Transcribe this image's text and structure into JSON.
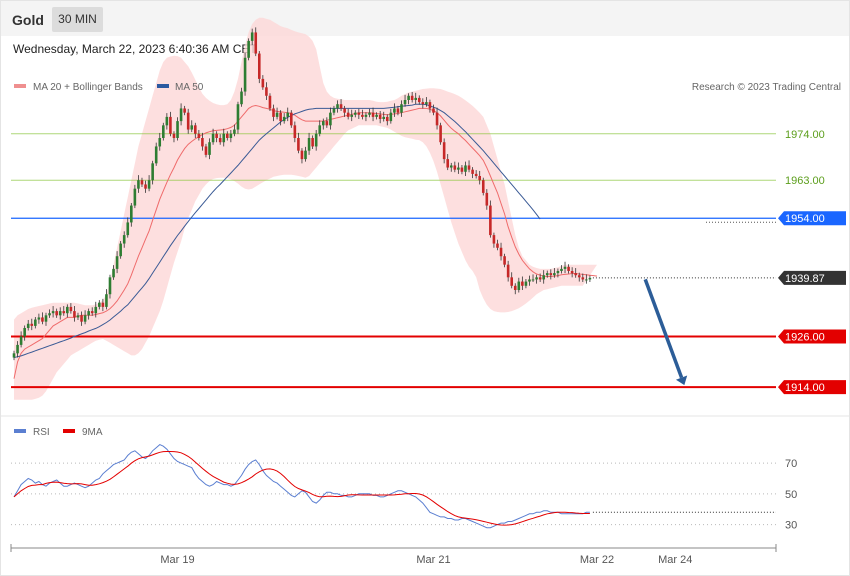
{
  "header": {
    "instrument": "Gold",
    "timeframe": "30 MIN"
  },
  "timestamp": "Wednesday, March 22, 2023 6:40:36 AM CET",
  "colors": {
    "up_candle": "#2e7d32",
    "down_candle": "#c62828",
    "ma20": "#ef6b6b",
    "bollinger_fill": "#fdd7d7",
    "ma50": "#3a5a95",
    "rsi": "#5b7fd1",
    "rsi_ma": "#e30000",
    "resistance": "#8cc63f",
    "pivot": "#1a66ff",
    "support": "#e30000",
    "arrow": "#2c5d98",
    "last_price": "#333333"
  },
  "chart_data": [
    {
      "type": "candlestick",
      "legend": [
        {
          "name": "MA 20 + Bollinger Bands",
          "color": "#ef8f8f"
        },
        {
          "name": "MA 50",
          "color": "#2c5aa0"
        }
      ],
      "copyright": "Research © 2023 Trading Central",
      "x_ticks": [
        {
          "index": 46,
          "label": "Mar 19"
        },
        {
          "index": 118,
          "label": "Mar 21"
        },
        {
          "index": 164,
          "label": "Mar 22"
        },
        {
          "index": 186,
          "label": "Mar 24"
        }
      ],
      "x_span": 194,
      "ylim": [
        1910,
        1982
      ],
      "levels": [
        {
          "value": 1974.0,
          "label": "1974.00",
          "kind": "resistance"
        },
        {
          "value": 1963.0,
          "label": "1963.00",
          "kind": "resistance"
        },
        {
          "value": 1954.0,
          "label": "1954.00",
          "kind": "pivot"
        },
        {
          "value": 1926.0,
          "label": "1926.00",
          "kind": "support"
        },
        {
          "value": 1914.0,
          "label": "1914.00",
          "kind": "support"
        }
      ],
      "last_price": {
        "value": 1939.87,
        "label": "1939.87"
      },
      "forecast_arrow": {
        "from": [
          177,
          1940
        ],
        "to": [
          188,
          1914
        ]
      },
      "close": [
        1922.0,
        1924.0,
        1926.0,
        1928.0,
        1929.0,
        1928.5,
        1930.0,
        1930.5,
        1929.5,
        1931.0,
        1931.5,
        1932.0,
        1931.0,
        1932.0,
        1931.5,
        1933.0,
        1932.0,
        1930.5,
        1931.0,
        1929.5,
        1931.0,
        1932.0,
        1931.5,
        1933.0,
        1934.0,
        1933.0,
        1936.0,
        1940.0,
        1942.0,
        1945.0,
        1948.0,
        1950.0,
        1953.0,
        1957.0,
        1961.0,
        1963.0,
        1962.0,
        1961.0,
        1963.0,
        1967.0,
        1971.0,
        1973.0,
        1976.0,
        1978.0,
        1974.0,
        1973.0,
        1977.0,
        1980.0,
        1979.0,
        1975.0,
        1976.0,
        1974.0,
        1973.0,
        1971.0,
        1969.0,
        1972.0,
        1974.0,
        1973.0,
        1972.0,
        1974.0,
        1973.0,
        1974.0,
        1975.0,
        1981.0,
        1984.0,
        1992.0,
        1996.0,
        1998.0,
        1993.0,
        1987.0,
        1985.0,
        1983.0,
        1980.0,
        1978.0,
        1979.0,
        1977.0,
        1978.0,
        1979.0,
        1976.0,
        1973.0,
        1970.0,
        1968.0,
        1970.0,
        1973.0,
        1971.0,
        1974.0,
        1976.0,
        1977.0,
        1976.0,
        1979.0,
        1980.0,
        1981.0,
        1980.0,
        1979.0,
        1978.0,
        1978.5,
        1979.0,
        1978.5,
        1978.0,
        1978.5,
        1979.0,
        1978.0,
        1978.5,
        1977.5,
        1978.0,
        1977.0,
        1979.0,
        1980.0,
        1979.0,
        1981.0,
        1982.0,
        1983.0,
        1982.0,
        1982.5,
        1981.5,
        1981.0,
        1981.5,
        1980.0,
        1979.0,
        1976.0,
        1972.0,
        1968.0,
        1966.0,
        1966.5,
        1965.5,
        1966.0,
        1965.0,
        1966.5,
        1965.5,
        1964.5,
        1964.0,
        1963.0,
        1960.0,
        1957.0,
        1950.0,
        1948.0,
        1947.0,
        1945.0,
        1943.0,
        1940.0,
        1938.0,
        1937.0,
        1939.0,
        1938.0,
        1939.0,
        1939.5,
        1939.5,
        1940.0,
        1939.5,
        1940.5,
        1941.0,
        1940.5,
        1941.0,
        1941.5,
        1942.0,
        1942.5,
        1941.5,
        1941.0,
        1940.5,
        1940.0,
        1939.5,
        1939.5,
        1939.87
      ],
      "ma20": [
        1916.0,
        1920.0,
        1922.0,
        1923.0,
        1923.5,
        1924.0,
        1924.5,
        1925.0,
        1925.5,
        1926.5,
        1927.5,
        1928.5,
        1929.0,
        1929.5,
        1930.0,
        1930.5,
        1930.5,
        1930.5,
        1930.8,
        1931.0,
        1931.0,
        1931.0,
        1931.0,
        1931.2,
        1931.4,
        1931.6,
        1932.0,
        1932.6,
        1933.4,
        1934.4,
        1935.7,
        1937.0,
        1938.5,
        1940.5,
        1942.8,
        1945.0,
        1947.0,
        1949.0,
        1951.0,
        1953.5,
        1956.0,
        1958.5,
        1960.5,
        1962.5,
        1964.3,
        1966.0,
        1967.8,
        1969.2,
        1970.5,
        1971.5,
        1972.2,
        1972.8,
        1973.3,
        1973.8,
        1974.2,
        1974.5,
        1974.7,
        1974.8,
        1974.9,
        1975.0,
        1975.2,
        1975.5,
        1976.0,
        1977.0,
        1978.0,
        1979.0,
        1980.0,
        1980.5,
        1980.7,
        1980.5,
        1980.2,
        1980.0,
        1979.8,
        1979.5,
        1979.3,
        1979.2,
        1979.1,
        1979.0,
        1978.8,
        1978.4,
        1977.8,
        1977.3,
        1977.0,
        1977.0,
        1977.0,
        1977.0,
        1977.0,
        1977.0,
        1977.2,
        1977.4,
        1977.6,
        1977.8,
        1978.0,
        1978.2,
        1978.4,
        1978.6,
        1978.8,
        1979.0,
        1979.0,
        1979.0,
        1979.0,
        1978.9,
        1978.8,
        1978.7,
        1978.6,
        1978.5,
        1978.6,
        1978.7,
        1978.8,
        1979.0,
        1979.2,
        1979.4,
        1979.6,
        1979.8,
        1980.0,
        1980.0,
        1980.0,
        1979.8,
        1979.5,
        1979.0,
        1978.2,
        1977.2,
        1976.2,
        1975.3,
        1974.6,
        1974.0,
        1973.2,
        1972.4,
        1971.5,
        1970.6,
        1969.7,
        1968.8,
        1967.7,
        1966.0,
        1964.0,
        1962.0,
        1960.0,
        1957.5,
        1955.0,
        1952.0,
        1949.5,
        1947.2,
        1945.5,
        1944.0,
        1943.0,
        1942.0,
        1941.3,
        1940.8,
        1940.5,
        1940.3,
        1940.2,
        1940.2,
        1940.3,
        1940.4,
        1940.6,
        1940.7,
        1940.8,
        1940.9,
        1940.9,
        1940.8,
        1940.7,
        1940.6,
        1940.5,
        1940.4,
        1940.3
      ],
      "bb_upper": [
        1930.0,
        1931.0,
        1931.5,
        1932.0,
        1932.5,
        1932.8,
        1933.0,
        1933.2,
        1933.4,
        1933.6,
        1933.8,
        1934.0,
        1934.0,
        1934.0,
        1934.0,
        1934.0,
        1934.0,
        1934.0,
        1933.8,
        1933.6,
        1933.4,
        1933.4,
        1933.4,
        1933.6,
        1934.0,
        1934.6,
        1936.0,
        1939.0,
        1943.0,
        1947.0,
        1951.0,
        1955.0,
        1959.0,
        1963.0,
        1967.0,
        1971.0,
        1974.0,
        1977.0,
        1980.0,
        1983.0,
        1986.0,
        1989.0,
        1991.0,
        1992.0,
        1992.3,
        1992.5,
        1992.4,
        1992.0,
        1991.0,
        1990.0,
        1988.5,
        1986.8,
        1985.0,
        1983.5,
        1982.5,
        1981.8,
        1981.3,
        1981.0,
        1980.8,
        1980.8,
        1981.0,
        1982.0,
        1984.0,
        1987.0,
        1991.0,
        1995.0,
        1998.0,
        2000.0,
        2001.0,
        2001.5,
        2001.5,
        2001.2,
        2001.0,
        2000.5,
        2000.0,
        1999.5,
        1999.2,
        1999.0,
        1998.6,
        1998.3,
        1998.0,
        1997.8,
        1997.6,
        1997.0,
        1996.0,
        1994.0,
        1990.0,
        1986.0,
        1984.0,
        1983.0,
        1982.5,
        1982.3,
        1982.2,
        1982.0,
        1982.0,
        1982.0,
        1982.0,
        1982.0,
        1982.0,
        1982.0,
        1982.0,
        1981.8,
        1981.6,
        1981.5,
        1981.5,
        1981.6,
        1981.8,
        1982.0,
        1982.4,
        1983.0,
        1983.4,
        1983.8,
        1984.0,
        1984.2,
        1984.4,
        1984.6,
        1984.7,
        1984.8,
        1984.8,
        1984.7,
        1984.6,
        1984.3,
        1984.0,
        1983.7,
        1983.4,
        1983.0,
        1982.5,
        1981.9,
        1981.3,
        1980.6,
        1979.8,
        1979.0,
        1978.0,
        1976.0,
        1974.0,
        1971.0,
        1968.0,
        1965.0,
        1962.0,
        1958.0,
        1954.0,
        1950.0,
        1947.0,
        1945.0,
        1944.0,
        1943.0,
        1942.5,
        1942.2,
        1942.0,
        1942.0,
        1942.0,
        1942.0,
        1942.2,
        1942.4,
        1942.7,
        1943.0,
        1943.0,
        1943.0,
        1943.0,
        1943.0,
        1943.0,
        1943.0,
        1943.0,
        1943.0,
        1943.0
      ],
      "bb_lower": [
        1911.0,
        1911.0,
        1911.0,
        1911.0,
        1911.0,
        1911.0,
        1911.2,
        1911.5,
        1912.0,
        1913.0,
        1914.5,
        1916.0,
        1917.5,
        1918.5,
        1919.5,
        1920.5,
        1921.5,
        1922.0,
        1922.5,
        1923.0,
        1923.5,
        1924.0,
        1924.5,
        1925.0,
        1925.2,
        1925.4,
        1925.0,
        1924.5,
        1924.0,
        1923.5,
        1923.0,
        1922.5,
        1922.0,
        1921.5,
        1921.5,
        1922.0,
        1923.0,
        1924.5,
        1926.0,
        1928.0,
        1930.0,
        1932.0,
        1934.5,
        1937.5,
        1940.5,
        1943.5,
        1946.0,
        1948.5,
        1951.5,
        1954.0,
        1956.0,
        1958.0,
        1959.5,
        1961.0,
        1962.0,
        1962.8,
        1963.3,
        1963.5,
        1963.6,
        1963.6,
        1963.5,
        1963.2,
        1962.8,
        1962.2,
        1961.5,
        1961.0,
        1960.8,
        1961.0,
        1961.5,
        1962.0,
        1962.5,
        1963.0,
        1963.4,
        1963.8,
        1964.0,
        1964.2,
        1964.3,
        1964.3,
        1964.3,
        1964.2,
        1964.0,
        1963.8,
        1963.6,
        1964.0,
        1965.0,
        1966.0,
        1967.0,
        1968.0,
        1969.0,
        1970.0,
        1971.0,
        1972.0,
        1973.0,
        1974.0,
        1974.8,
        1975.2,
        1975.6,
        1976.0,
        1976.0,
        1976.0,
        1976.0,
        1976.0,
        1976.0,
        1975.8,
        1975.6,
        1975.4,
        1975.0,
        1974.5,
        1974.0,
        1973.5,
        1973.2,
        1973.0,
        1972.8,
        1972.6,
        1972.5,
        1972.0,
        1971.0,
        1969.5,
        1967.5,
        1965.0,
        1962.0,
        1959.0,
        1956.0,
        1953.0,
        1950.5,
        1948.0,
        1946.0,
        1944.0,
        1942.5,
        1941.5,
        1940.0,
        1937.0,
        1935.0,
        1933.5,
        1932.5,
        1932.0,
        1931.8,
        1931.7,
        1931.7,
        1931.8,
        1932.0,
        1932.3,
        1932.7,
        1933.2,
        1933.8,
        1934.5,
        1935.2,
        1936.0,
        1936.5,
        1937.0,
        1937.2,
        1937.4,
        1937.6,
        1937.8,
        1938.0,
        1938.0,
        1938.0,
        1938.0,
        1938.0,
        1938.0,
        1938.0
      ],
      "ma50": [
        1921.0,
        1921.2,
        1921.4,
        1921.7,
        1922.0,
        1922.3,
        1922.6,
        1922.9,
        1923.2,
        1923.5,
        1923.8,
        1924.1,
        1924.4,
        1924.7,
        1925.0,
        1925.3,
        1925.6,
        1926.0,
        1926.3,
        1926.6,
        1926.9,
        1927.3,
        1927.6,
        1927.9,
        1928.3,
        1928.8,
        1929.3,
        1929.9,
        1930.6,
        1931.3,
        1932.0,
        1932.8,
        1933.5,
        1934.5,
        1935.5,
        1936.5,
        1937.5,
        1938.5,
        1939.7,
        1941.0,
        1942.3,
        1943.6,
        1944.9,
        1946.2,
        1947.5,
        1948.7,
        1949.9,
        1951.0,
        1952.1,
        1953.2,
        1954.3,
        1955.3,
        1956.3,
        1957.3,
        1958.3,
        1959.3,
        1960.3,
        1961.2,
        1962.0,
        1962.9,
        1963.8,
        1964.7,
        1965.6,
        1966.5,
        1967.5,
        1968.5,
        1969.5,
        1970.5,
        1971.5,
        1972.5,
        1973.3,
        1974.0,
        1974.7,
        1975.4,
        1976.1,
        1976.8,
        1977.4,
        1977.9,
        1978.3,
        1978.7,
        1979.0,
        1979.3,
        1979.6,
        1979.8,
        1979.9,
        1980.0,
        1980.0,
        1980.0,
        1980.0,
        1980.0,
        1980.0,
        1980.0,
        1980.0,
        1980.0,
        1980.0,
        1980.0,
        1980.0,
        1980.0,
        1980.0,
        1980.0,
        1980.0,
        1980.0,
        1980.0,
        1980.0,
        1980.0,
        1980.1,
        1980.2,
        1980.3,
        1980.4,
        1980.5,
        1980.6,
        1980.7,
        1980.8,
        1981.0,
        1981.0,
        1981.0,
        1980.9,
        1980.6,
        1980.3,
        1980.0,
        1979.5,
        1979.0,
        1978.3,
        1977.6,
        1976.9,
        1976.1,
        1975.3,
        1974.5,
        1973.6,
        1972.7,
        1971.8,
        1970.9,
        1970.0,
        1969.0,
        1968.0,
        1967.0,
        1966.0,
        1965.0,
        1964.0,
        1963.0,
        1962.0,
        1961.0,
        1960.0,
        1959.0,
        1958.0,
        1957.0,
        1956.0,
        1954.9,
        1953.8
      ],
      "rsi": [
        48,
        52,
        56,
        58,
        60,
        59,
        57,
        58,
        56,
        55,
        57,
        58,
        59,
        57,
        55,
        55,
        56,
        57,
        56,
        55,
        54,
        55,
        57,
        59,
        60,
        63,
        65,
        67,
        69,
        70,
        71,
        72,
        75,
        77,
        78,
        76,
        74,
        73,
        75,
        78,
        80,
        82,
        81,
        79,
        76,
        73,
        71,
        70,
        69,
        68,
        67,
        63,
        60,
        58,
        56,
        55,
        56,
        58,
        57,
        56,
        56,
        55,
        56,
        59,
        62,
        66,
        69,
        71,
        72,
        69,
        65,
        62,
        60,
        58,
        57,
        55,
        53,
        51,
        49,
        48,
        50,
        52,
        51,
        48,
        45,
        44,
        46,
        49,
        51,
        51,
        50,
        50,
        49,
        49,
        48,
        48,
        49,
        50,
        50,
        50,
        50,
        49,
        49,
        48,
        48,
        49,
        50,
        51,
        52,
        52,
        51,
        50,
        49,
        48,
        46,
        44,
        41,
        38,
        37,
        36,
        35,
        35,
        34,
        34,
        33,
        33,
        34,
        34,
        33,
        32,
        31,
        30,
        29,
        28,
        28,
        29,
        30,
        31,
        31,
        32,
        32,
        33,
        34,
        35,
        36,
        37,
        37,
        38,
        38,
        39,
        39,
        38,
        38,
        38,
        37,
        37,
        37,
        37,
        37,
        37,
        37,
        38,
        38
      ]
    },
    {
      "type": "line",
      "legend": [
        {
          "name": "RSI",
          "color": "#5b7fd1"
        },
        {
          "name": "9MA",
          "color": "#e30000"
        }
      ],
      "ylim": [
        20,
        85
      ],
      "y_ticks": [
        {
          "value": 70,
          "label": "70"
        },
        {
          "value": 50,
          "label": "50"
        },
        {
          "value": 30,
          "label": "30"
        }
      ]
    }
  ]
}
